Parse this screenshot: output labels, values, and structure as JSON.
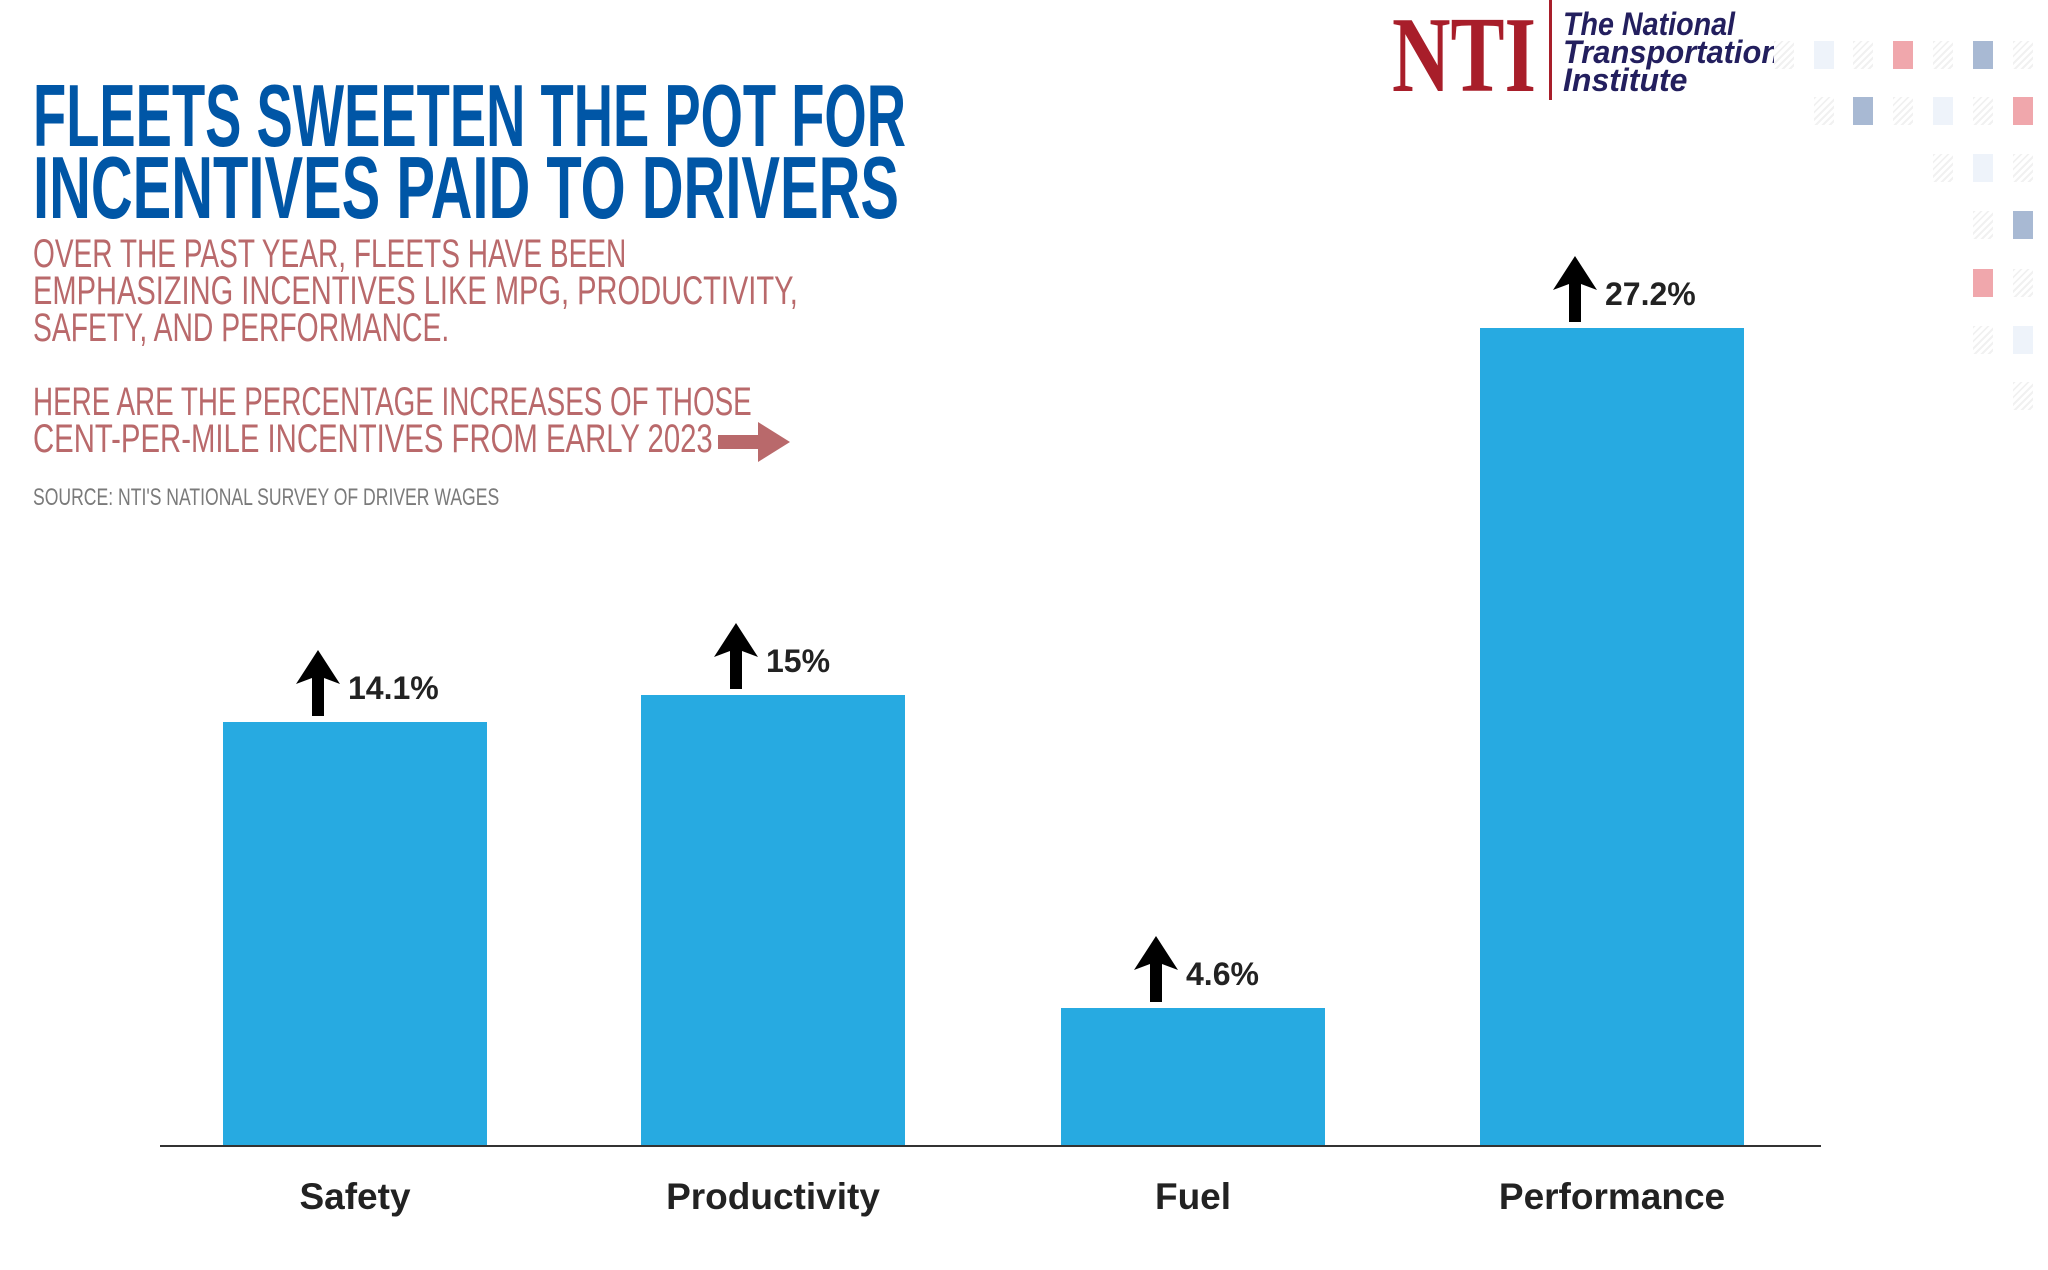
{
  "header": {
    "title_lines": [
      "FLEETS SWEETEN THE POT FOR",
      "INCENTIVES PAID TO DRIVERS"
    ],
    "subtitle_lines": [
      "OVER THE PAST YEAR, FLEETS HAVE BEEN",
      "EMPHASIZING INCENTIVES LIKE MPG, PRODUCTIVITY,",
      "SAFETY, AND PERFORMANCE."
    ],
    "intro_lines": [
      "HERE ARE THE PERCENTAGE INCREASES OF THOSE",
      "CENT-PER-MILE INCENTIVES FROM EARLY 2023"
    ],
    "source": "SOURCE: NTI'S NATIONAL SURVEY OF DRIVER WAGES",
    "arrow_icon": "right-arrow-icon"
  },
  "logo": {
    "mark": "NTI",
    "text_lines": [
      "The National",
      "Transportation",
      "Institute"
    ]
  },
  "colors": {
    "title": "#0056a6",
    "subtitle": "#b9696b",
    "bar": "#27aae1",
    "logo_red": "#a81e2a",
    "logo_navy": "#231f5e"
  },
  "chart_data": {
    "type": "bar",
    "categories": [
      "Safety",
      "Productivity",
      "Fuel",
      "Performance"
    ],
    "values": [
      14.1,
      15,
      4.6,
      27.2
    ],
    "value_labels": [
      "14.1%",
      "15%",
      "4.6%",
      "27.2%"
    ],
    "value_icon": "up-arrow-icon",
    "unit": "%",
    "ylim": [
      0,
      27.2
    ],
    "grid": false
  }
}
